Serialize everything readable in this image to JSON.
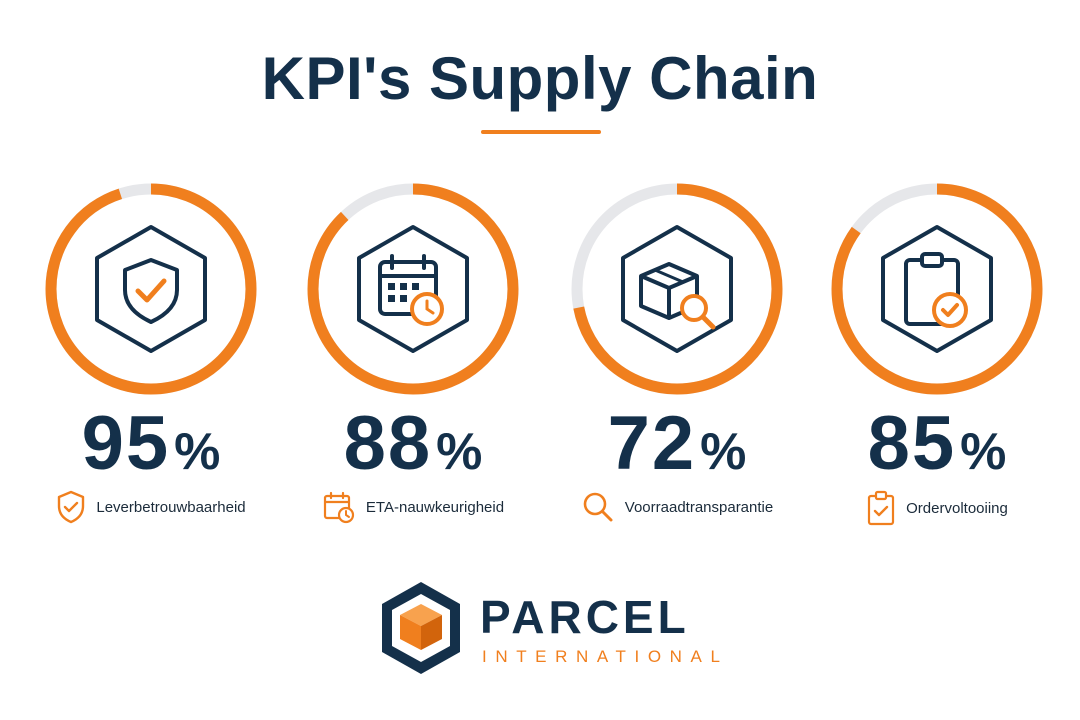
{
  "header": {
    "title": "KPI's Supply Chain"
  },
  "colors": {
    "accent": "#f07f1e",
    "navy": "#14304a",
    "track": "#e6e7ea"
  },
  "kpis": [
    {
      "value": "95",
      "unit": "%",
      "fraction": 0.95,
      "label": "Leverbetrouwbaarheid",
      "icon": "shield-check-icon",
      "label_icon": "shield-check-icon"
    },
    {
      "value": "88",
      "unit": "%",
      "fraction": 0.88,
      "label": "ETA-nauwkeurigheid",
      "icon": "calendar-clock-icon",
      "label_icon": "calendar-clock-icon"
    },
    {
      "value": "72",
      "unit": "%",
      "fraction": 0.72,
      "label": "Voorraadtransparantie",
      "icon": "box-magnifier-icon",
      "label_icon": "magnifier-icon"
    },
    {
      "value": "85",
      "unit": "%",
      "fraction": 0.85,
      "label": "Ordervoltooiing",
      "icon": "clipboard-check-icon",
      "label_icon": "clipboard-check-icon"
    }
  ],
  "brand": {
    "name": "PARCEL",
    "tagline": "INTERNATIONAL",
    "icon": "parcel-hexagon-logo-icon"
  }
}
